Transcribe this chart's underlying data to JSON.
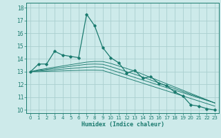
{
  "x": [
    0,
    1,
    2,
    3,
    4,
    5,
    6,
    7,
    8,
    9,
    10,
    11,
    12,
    13,
    14,
    15,
    16,
    17,
    18,
    19,
    20,
    21,
    22,
    23
  ],
  "main_line": [
    13.0,
    13.6,
    13.6,
    14.6,
    14.3,
    14.2,
    14.1,
    17.5,
    16.6,
    14.9,
    14.1,
    13.7,
    12.9,
    13.1,
    12.5,
    12.6,
    12.1,
    11.9,
    11.4,
    11.1,
    10.4,
    10.3,
    10.1,
    10.0
  ],
  "trend_lines": [
    [
      13.0,
      13.15,
      13.25,
      13.35,
      13.45,
      13.55,
      13.65,
      13.75,
      13.8,
      13.8,
      13.65,
      13.45,
      13.25,
      13.05,
      12.8,
      12.55,
      12.3,
      12.05,
      11.8,
      11.55,
      11.3,
      11.05,
      10.8,
      10.55
    ],
    [
      13.0,
      13.1,
      13.18,
      13.26,
      13.34,
      13.42,
      13.5,
      13.58,
      13.6,
      13.58,
      13.4,
      13.2,
      13.0,
      12.8,
      12.58,
      12.35,
      12.12,
      11.9,
      11.68,
      11.45,
      11.22,
      11.0,
      10.78,
      10.55
    ],
    [
      13.0,
      13.05,
      13.1,
      13.15,
      13.2,
      13.25,
      13.3,
      13.35,
      13.38,
      13.35,
      13.15,
      12.95,
      12.75,
      12.55,
      12.35,
      12.15,
      11.95,
      11.75,
      11.55,
      11.35,
      11.15,
      10.95,
      10.75,
      10.55
    ],
    [
      13.0,
      13.0,
      13.02,
      13.04,
      13.06,
      13.08,
      13.1,
      13.12,
      13.12,
      13.1,
      12.9,
      12.7,
      12.5,
      12.3,
      12.1,
      11.9,
      11.7,
      11.5,
      11.3,
      11.1,
      10.9,
      10.7,
      10.5,
      10.3
    ]
  ],
  "line_color": "#1a7a6e",
  "bg_color": "#cdeaea",
  "grid_color": "#aacfcf",
  "xlabel": "Humidex (Indice chaleur)",
  "xlim": [
    -0.5,
    23.5
  ],
  "ylim": [
    9.75,
    18.4
  ],
  "yticks": [
    10,
    11,
    12,
    13,
    14,
    15,
    16,
    17,
    18
  ],
  "xticks": [
    0,
    1,
    2,
    3,
    4,
    5,
    6,
    7,
    8,
    9,
    10,
    11,
    12,
    13,
    14,
    15,
    16,
    17,
    18,
    19,
    20,
    21,
    22,
    23
  ]
}
